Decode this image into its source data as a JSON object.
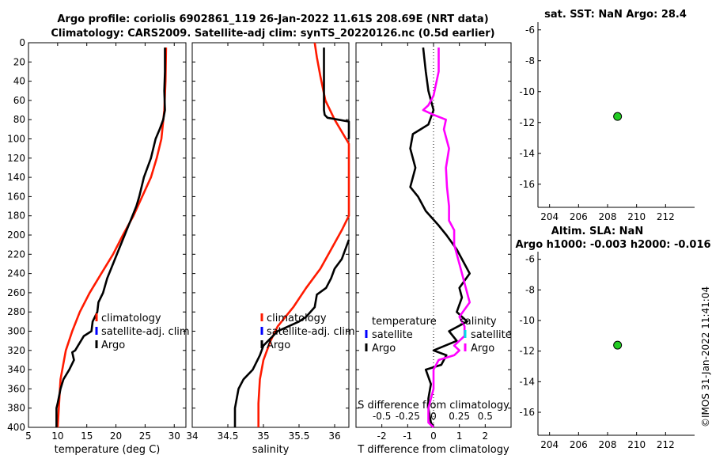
{
  "titles": {
    "line1": "Argo profile: coriolis 6902861_119 26-Jan-2022 11.61S 208.69E (NRT data)",
    "line2": "Climatology: CARS2009. Satellite-adj clim: synTS_20220126.nc (0.5d earlier)",
    "sst_title": "sat. SST: NaN Argo: 28.4",
    "sla_title1": "Altim. SLA: NaN",
    "sla_title2": "Argo h1000: -0.003 h2000: -0.016"
  },
  "watermark": "©IMOS 31-Jan-2022 11:41:04",
  "colors": {
    "climatology": "#ff1a00",
    "satellite": "#0000ff",
    "satellite_s": "#00e5e5",
    "argo": "#000000",
    "salinity_diff": "#ff00ff",
    "map_point": "#22cc22"
  },
  "chart_data": [
    {
      "type": "line",
      "name": "temperature-profile",
      "xlabel": "temperature (deg C)",
      "ylabel": "",
      "xlim": [
        5,
        32
      ],
      "ylim": [
        400,
        0
      ],
      "xticks": [
        "5",
        "10",
        "15",
        "20",
        "25",
        "30"
      ],
      "yticks": [
        "0",
        "20",
        "40",
        "60",
        "80",
        "100",
        "120",
        "140",
        "160",
        "180",
        "200",
        "220",
        "240",
        "260",
        "280",
        "300",
        "320",
        "340",
        "360",
        "380",
        "400"
      ],
      "legend": [
        "climatology",
        "satellite-adj. clim",
        "Argo"
      ],
      "series": [
        {
          "name": "climatology",
          "color_key": "climatology",
          "x": [
            28.6,
            28.5,
            28.3,
            27.8,
            27.0,
            26.0,
            24.5,
            23.0,
            21.2,
            19.5,
            17.5,
            15.5,
            13.8,
            12.5,
            11.4,
            10.5,
            10.0
          ],
          "y": [
            5,
            40,
            70,
            100,
            120,
            140,
            160,
            180,
            200,
            220,
            240,
            260,
            280,
            300,
            320,
            350,
            400
          ]
        },
        {
          "name": "Argo",
          "color_key": "argo",
          "x": [
            28.4,
            28.4,
            28.3,
            28.4,
            28.1,
            27.5,
            26.8,
            26.0,
            24.8,
            24.0,
            23.5,
            22.5,
            21.5,
            20.5,
            19.5,
            18.5,
            17.8,
            17.0,
            16.8,
            16.0,
            15.8,
            14.5,
            14.0,
            13.0,
            12.5,
            12.8,
            12.0,
            11.5,
            11.0,
            10.5,
            10.0,
            9.8,
            9.8
          ],
          "y": [
            5,
            30,
            50,
            70,
            80,
            90,
            100,
            120,
            140,
            160,
            170,
            185,
            200,
            215,
            230,
            245,
            260,
            270,
            280,
            290,
            300,
            305,
            310,
            320,
            322,
            330,
            340,
            345,
            350,
            360,
            375,
            380,
            400
          ]
        }
      ]
    },
    {
      "type": "line",
      "name": "salinity-profile",
      "xlabel": "salinity",
      "ylabel": "",
      "xlim": [
        34,
        36.2
      ],
      "ylim": [
        400,
        0
      ],
      "xticks": [
        "34",
        "34.5",
        "35",
        "35.5",
        "36"
      ],
      "legend": [
        "climatology",
        "satellite-adj. clim",
        "Argo"
      ],
      "series": [
        {
          "name": "climatology",
          "color_key": "climatology",
          "x": [
            35.72,
            35.75,
            35.8,
            35.87,
            36.0,
            36.2,
            36.2,
            36.1,
            35.95,
            35.8,
            35.6,
            35.42,
            35.2,
            35.1,
            35.0,
            34.95,
            34.93,
            34.93
          ],
          "y": [
            0,
            15,
            35,
            60,
            80,
            105,
            180,
            195,
            215,
            235,
            255,
            275,
            295,
            310,
            330,
            350,
            375,
            400
          ]
        },
        {
          "name": "Argo-upper",
          "color_key": "argo",
          "x": [
            35.85,
            35.85,
            35.85,
            35.86,
            35.9,
            36.05,
            36.2,
            36.2,
            36.2,
            36.2
          ],
          "y": [
            5,
            50,
            70,
            75,
            78,
            80,
            82,
            88,
            95,
            100
          ]
        },
        {
          "name": "Argo-lower",
          "color_key": "argo",
          "x": [
            36.2,
            36.15,
            36.1,
            36.0,
            35.95,
            35.88,
            35.75,
            35.72,
            35.6,
            35.5,
            35.35,
            35.2,
            35.0,
            34.95,
            34.85,
            34.72,
            34.65,
            34.6,
            34.6
          ],
          "y": [
            205,
            215,
            225,
            235,
            245,
            255,
            262,
            275,
            285,
            290,
            295,
            300,
            315,
            325,
            340,
            350,
            360,
            380,
            400
          ]
        }
      ]
    },
    {
      "type": "line",
      "name": "difference-profile",
      "xlabel": "T difference from climatology",
      "x2label": "S difference from climatology",
      "xlim": [
        -3,
        3
      ],
      "x2lim": [
        -0.75,
        0.75
      ],
      "ylim": [
        400,
        0
      ],
      "xticks": [
        "-2",
        "-1",
        "0",
        "1",
        "2"
      ],
      "x2ticks": [
        "-0.5",
        "-0.25",
        "0",
        "0.25",
        "0.5"
      ],
      "legend_t": [
        "temperature",
        "satellite",
        "Argo"
      ],
      "legend_s": [
        "salinity",
        "satellite",
        "Argo"
      ],
      "series": [
        {
          "name": "T difference (Argo)",
          "color_key": "argo",
          "x": [
            -0.4,
            -0.3,
            -0.2,
            0,
            -0.2,
            -0.5,
            -0.8,
            -0.9,
            -0.7,
            -0.9,
            -0.6,
            -0.3,
            0.2,
            0.5,
            0.9,
            1.4,
            1.0,
            1.1,
            0.9,
            1.3,
            0.6,
            0.9,
            0.0,
            0.5,
            0.3,
            -0.3,
            -0.1,
            -0.2,
            -0.2,
            -0.1,
            0.0
          ],
          "y": [
            5,
            30,
            50,
            70,
            85,
            90,
            95,
            110,
            130,
            150,
            160,
            175,
            190,
            200,
            215,
            240,
            255,
            265,
            280,
            290,
            300,
            310,
            320,
            325,
            335,
            340,
            355,
            370,
            380,
            395,
            400
          ]
        },
        {
          "name": "S difference (Argo)",
          "color_key": "salinity_diff",
          "x": [
            0.05,
            0.05,
            0.0,
            -0.05,
            -0.1,
            0.0,
            0.12,
            0.1,
            0.15,
            0.12,
            0.13,
            0.15,
            0.15,
            0.2,
            0.2,
            0.25,
            0.3,
            0.35,
            0.25,
            0.3,
            0.3,
            0.2,
            0.25,
            0.2,
            0.05,
            0.0,
            0.0,
            -0.05,
            -0.05,
            0.0
          ],
          "y": [
            5,
            30,
            55,
            65,
            70,
            75,
            80,
            90,
            110,
            130,
            150,
            170,
            185,
            195,
            210,
            230,
            250,
            270,
            285,
            295,
            305,
            315,
            320,
            325,
            330,
            340,
            360,
            380,
            395,
            400
          ]
        }
      ]
    },
    {
      "type": "scatter",
      "name": "sst-map",
      "title": "sat. SST: NaN Argo: 28.4",
      "xlim": [
        203.2,
        214
      ],
      "ylim": [
        -17.5,
        -5.5
      ],
      "xticks": [
        "204",
        "206",
        "208",
        "210",
        "212"
      ],
      "yticks": [
        "-6",
        "-8",
        "-10",
        "-12",
        "-14",
        "-16"
      ],
      "points": [
        {
          "x": 208.69,
          "y": -11.61
        }
      ]
    },
    {
      "type": "scatter",
      "name": "sla-map",
      "title": "Altim. SLA: NaN / Argo h1000: -0.003 h2000: -0.016",
      "xlim": [
        203.2,
        214
      ],
      "ylim": [
        -17.5,
        -5.5
      ],
      "xticks": [
        "204",
        "206",
        "208",
        "210",
        "212"
      ],
      "yticks": [
        "-6",
        "-8",
        "-10",
        "-12",
        "-14",
        "-16"
      ],
      "points": [
        {
          "x": 208.69,
          "y": -11.61
        }
      ]
    }
  ]
}
